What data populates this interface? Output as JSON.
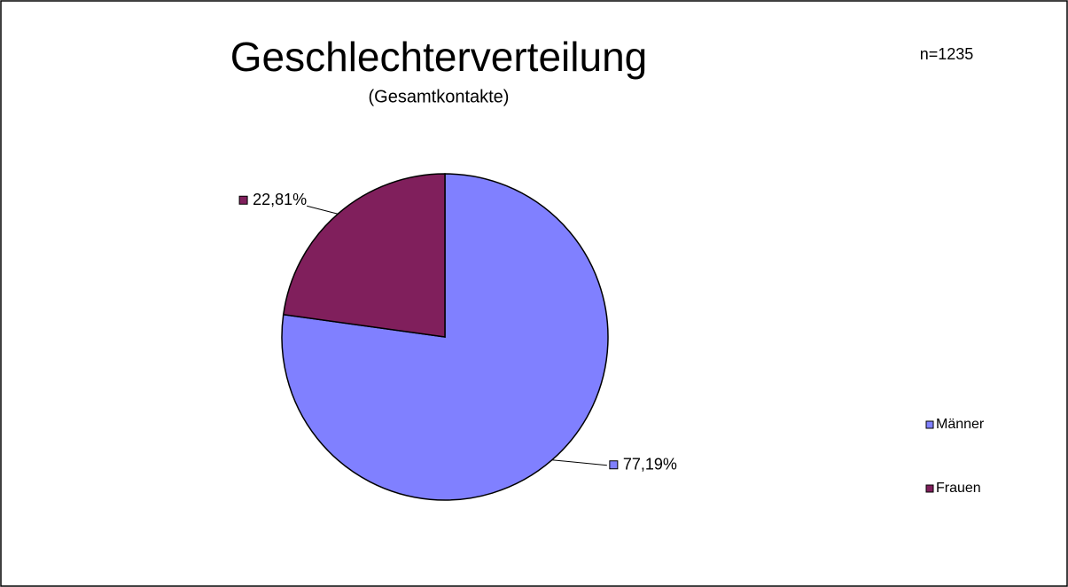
{
  "chart_data": {
    "type": "pie",
    "title": "Geschlechterverteilung",
    "subtitle": "(Gesamtkontakte)",
    "annotation": "n=1235",
    "categories": [
      "Männer",
      "Frauen"
    ],
    "values": [
      77.19,
      22.81
    ],
    "value_labels": [
      "77,19%",
      "22,81%"
    ],
    "colors": [
      "#8080ff",
      "#801f5c"
    ],
    "legend": "right"
  }
}
